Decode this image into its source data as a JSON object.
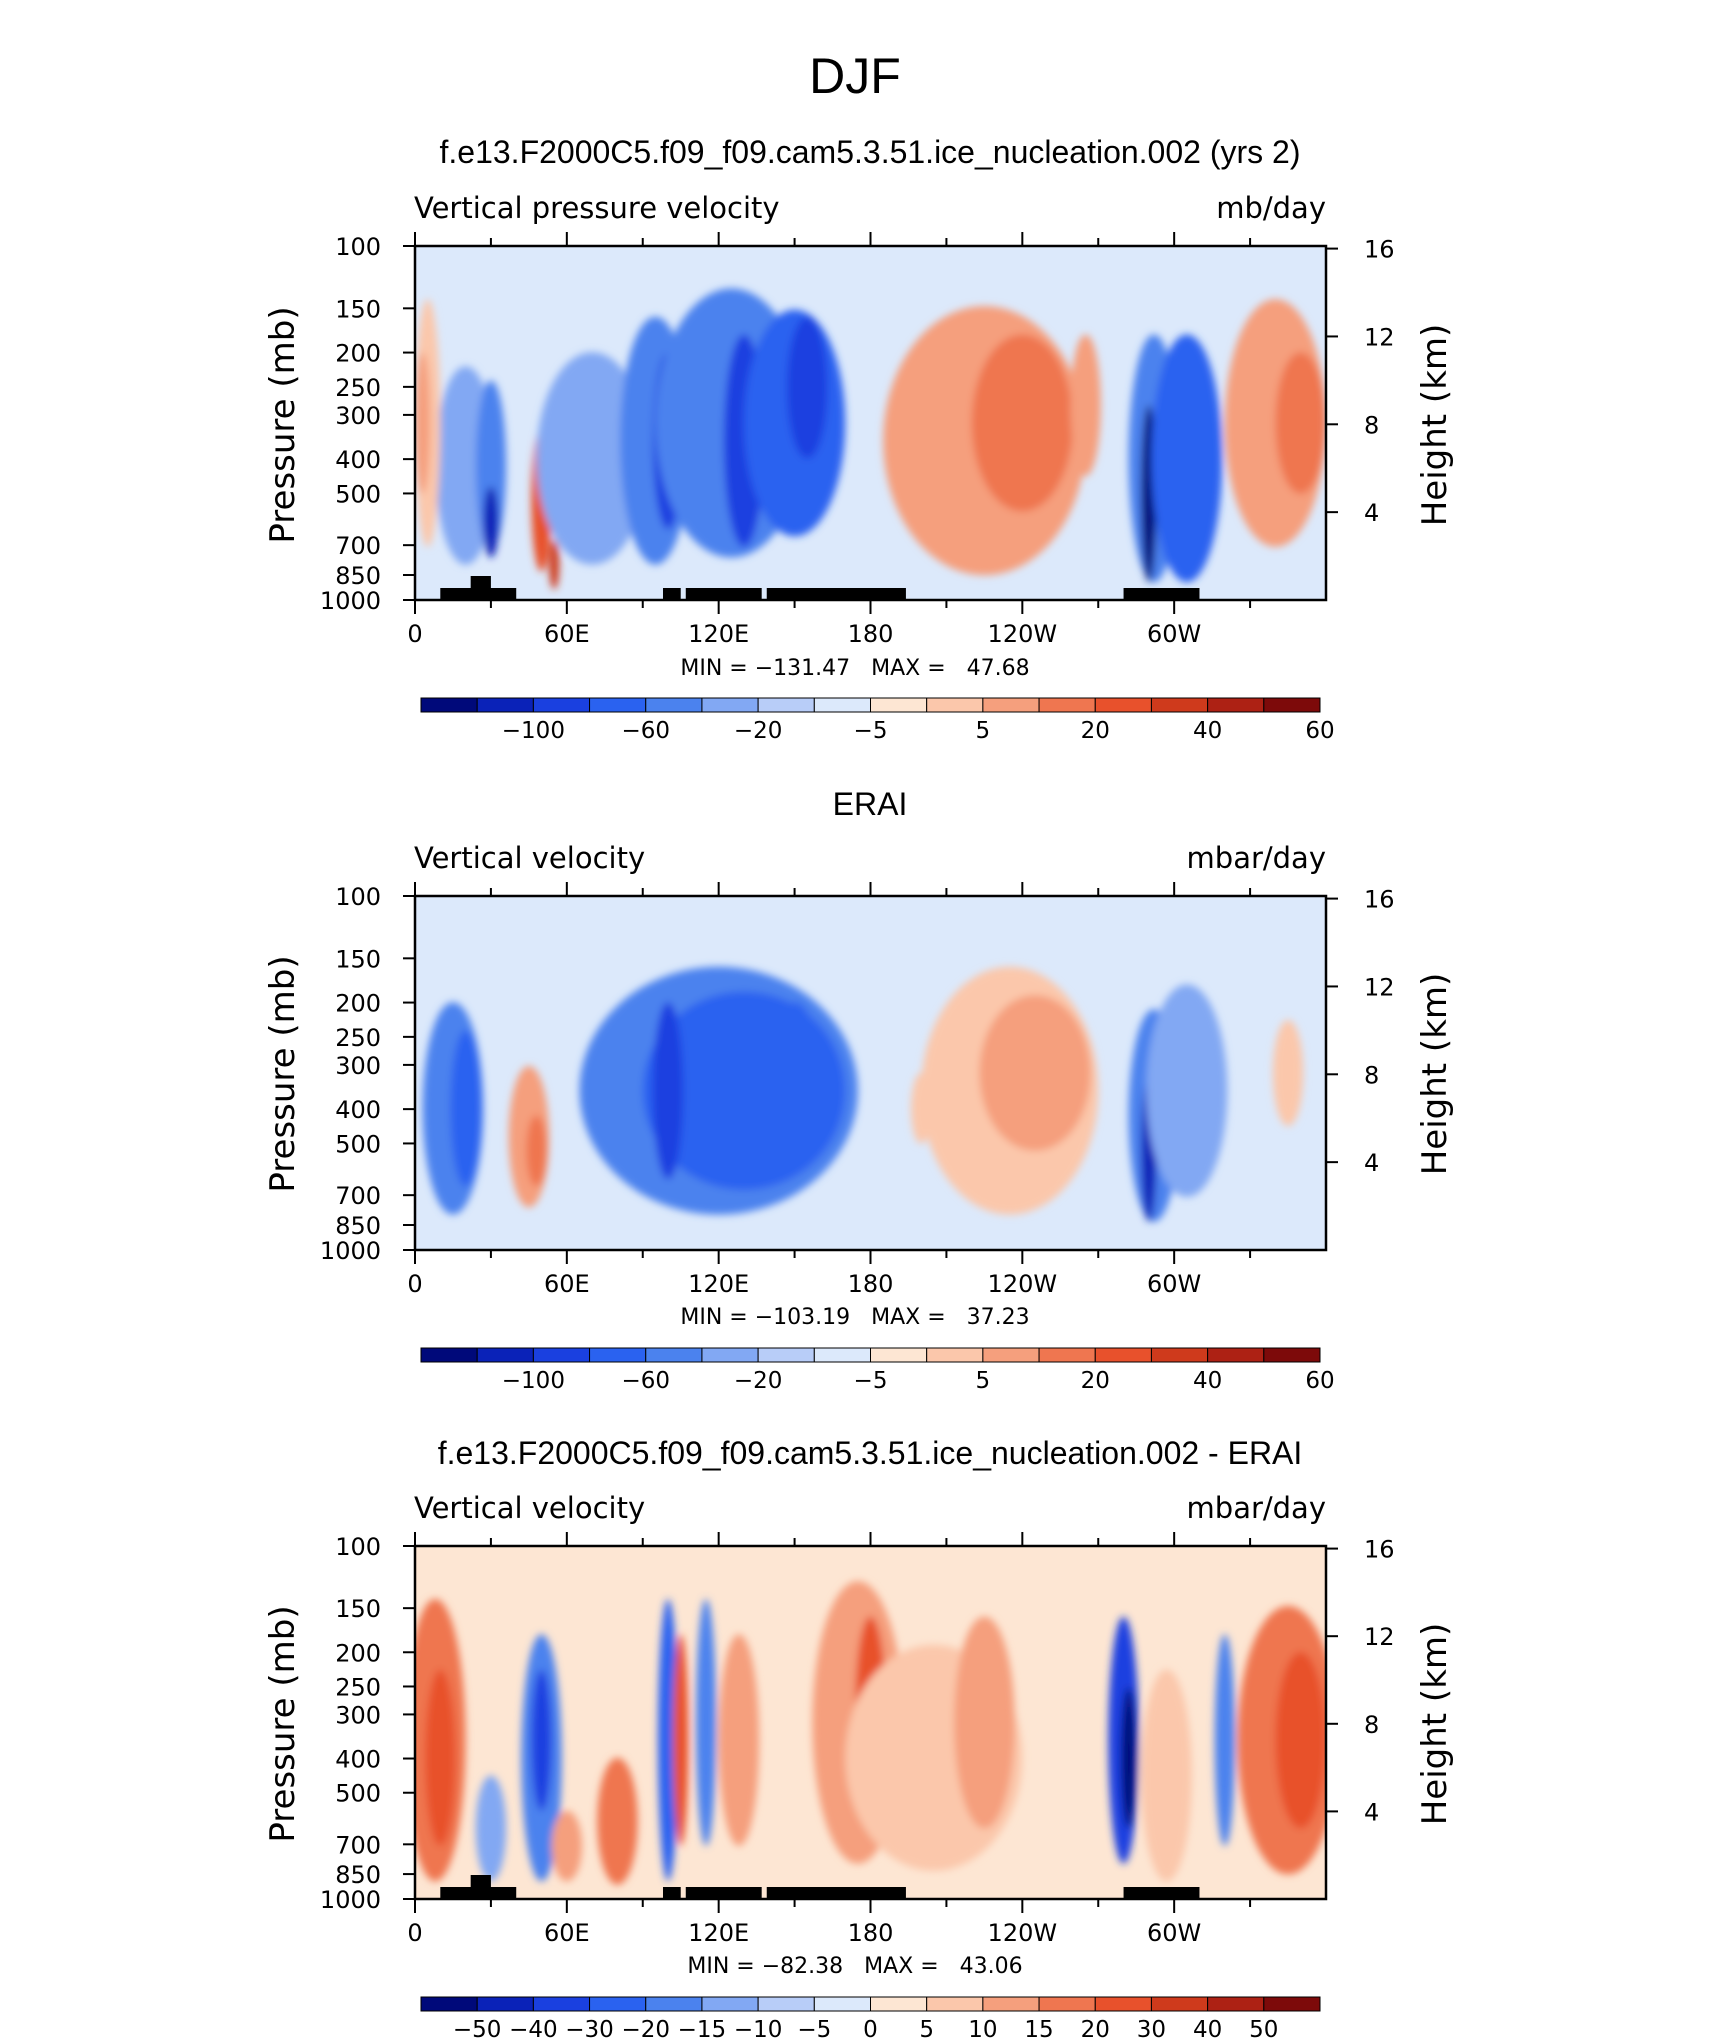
{
  "figure": {
    "title": "DJF"
  },
  "colors": {
    "ramp": [
      "#00097a",
      "#0a22b8",
      "#1a40e0",
      "#2a62f0",
      "#4b82ee",
      "#82a8f3",
      "#b8cdf8",
      "#dce9fb",
      "#fde6d3",
      "#fbc7ab",
      "#f59f7d",
      "#ef7650",
      "#e8512c",
      "#cf3a1c",
      "#ad2114",
      "#7d0a0a"
    ],
    "land": "#000000"
  },
  "chart_data": [
    {
      "type": "heatmap",
      "title": "f.e13.F2000C5.f09_f09.cam5.3.51.ice_nucleation.002 (yrs 2)",
      "left_label": "Vertical pressure velocity",
      "right_label": "mb/day",
      "ylabel": "Pressure (mb)",
      "ylabel_right": "Height (km)",
      "x_ticks": [
        "0",
        "60E",
        "120E",
        "180",
        "120W",
        "60W"
      ],
      "y_ticks": [
        "100",
        "150",
        "200",
        "250",
        "300",
        "400",
        "500",
        "700",
        "850",
        "1000"
      ],
      "y2_ticks": [
        "16",
        "12",
        "8",
        "4"
      ],
      "stats": {
        "min": "-131.47",
        "max": "47.68",
        "text": "MIN = −131.47   MAX =   47.68"
      },
      "colorbar_labels": [
        "−100",
        "−60",
        "−20",
        "−5",
        "5",
        "20",
        "40",
        "60"
      ],
      "colorbar_levels": [
        -120,
        -100,
        -80,
        -60,
        -40,
        -20,
        -10,
        -5,
        0,
        5,
        10,
        20,
        30,
        40,
        50,
        60,
        70
      ],
      "show_land": true,
      "ylim": [
        1000,
        100
      ]
    },
    {
      "type": "heatmap",
      "title": "ERAI",
      "left_label": "Vertical velocity",
      "right_label": "mbar/day",
      "ylabel": "Pressure (mb)",
      "ylabel_right": "Height (km)",
      "x_ticks": [
        "0",
        "60E",
        "120E",
        "180",
        "120W",
        "60W"
      ],
      "y_ticks": [
        "100",
        "150",
        "200",
        "250",
        "300",
        "400",
        "500",
        "700",
        "850",
        "1000"
      ],
      "y2_ticks": [
        "16",
        "12",
        "8",
        "4"
      ],
      "stats": {
        "min": "-103.19",
        "max": "37.23",
        "text": "MIN = −103.19   MAX =   37.23"
      },
      "colorbar_labels": [
        "−100",
        "−60",
        "−20",
        "−5",
        "5",
        "20",
        "40",
        "60"
      ],
      "colorbar_levels": [
        -120,
        -100,
        -80,
        -60,
        -40,
        -20,
        -10,
        -5,
        0,
        5,
        10,
        20,
        30,
        40,
        50,
        60,
        70
      ],
      "show_land": false,
      "ylim": [
        1000,
        100
      ]
    },
    {
      "type": "heatmap",
      "title": "f.e13.F2000C5.f09_f09.cam5.3.51.ice_nucleation.002 - ERAI",
      "left_label": "Vertical velocity",
      "right_label": "mbar/day",
      "ylabel": "Pressure (mb)",
      "ylabel_right": "Height (km)",
      "x_ticks": [
        "0",
        "60E",
        "120E",
        "180",
        "120W",
        "60W"
      ],
      "y_ticks": [
        "100",
        "150",
        "200",
        "250",
        "300",
        "400",
        "500",
        "700",
        "850",
        "1000"
      ],
      "y2_ticks": [
        "16",
        "12",
        "8",
        "4"
      ],
      "stats": {
        "min": "-82.38",
        "max": "43.06",
        "text": "MIN = −82.38   MAX =   43.06"
      },
      "colorbar_labels": [
        "−50",
        "−40",
        "−30",
        "−20",
        "−15",
        "−10",
        "−5",
        "0",
        "5",
        "10",
        "15",
        "20",
        "30",
        "40",
        "50"
      ],
      "colorbar_levels": [
        -60,
        -50,
        -40,
        -30,
        -20,
        -15,
        -10,
        -5,
        0,
        5,
        10,
        15,
        20,
        30,
        40,
        50,
        60
      ],
      "show_land": true,
      "ylim": [
        1000,
        100
      ]
    }
  ]
}
